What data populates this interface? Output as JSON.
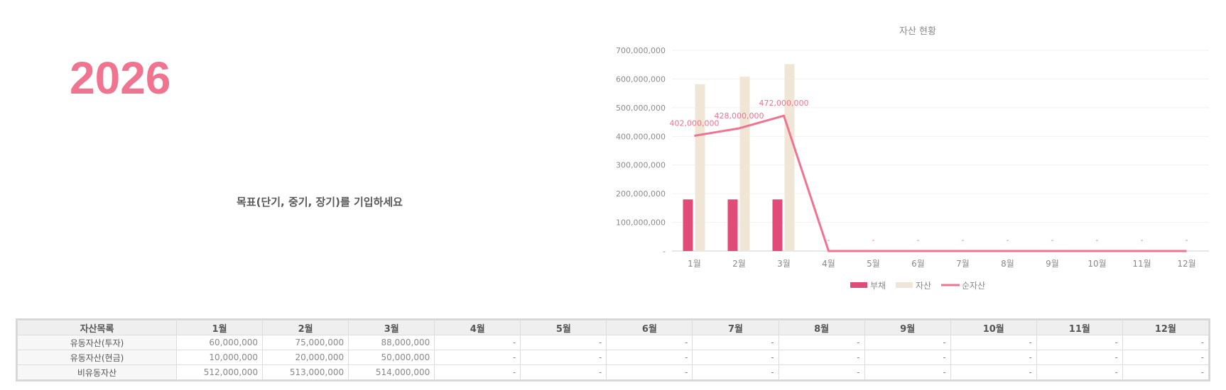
{
  "year": "2026",
  "goal_placeholder": "목표(단기, 중기, 장기)를 기입하세요",
  "colors": {
    "debt": "#e14b78",
    "asset": "#efe6d6",
    "net": "#f0738f",
    "year": "#f0738f"
  },
  "chart_data": {
    "type": "bar",
    "title": "자산 현황",
    "categories": [
      "1월",
      "2월",
      "3월",
      "4월",
      "5월",
      "6월",
      "7월",
      "8월",
      "9월",
      "10월",
      "11월",
      "12월"
    ],
    "y_ticks": [
      "-",
      "100,000,000",
      "200,000,000",
      "300,000,000",
      "400,000,000",
      "500,000,000",
      "600,000,000",
      "700,000,000"
    ],
    "ylim": [
      0,
      700000000
    ],
    "series": [
      {
        "name": "부채",
        "type": "bar",
        "values": [
          180000000,
          180000000,
          180000000,
          0,
          0,
          0,
          0,
          0,
          0,
          0,
          0,
          0
        ]
      },
      {
        "name": "자산",
        "type": "bar",
        "values": [
          582000000,
          608000000,
          652000000,
          0,
          0,
          0,
          0,
          0,
          0,
          0,
          0,
          0
        ]
      },
      {
        "name": "순자산",
        "type": "line",
        "values": [
          402000000,
          428000000,
          472000000,
          0,
          0,
          0,
          0,
          0,
          0,
          0,
          0,
          0
        ]
      }
    ],
    "data_labels": [
      "402,000,000",
      "428,000,000",
      "472,000,000",
      "-",
      "-",
      "-",
      "-",
      "-",
      "-",
      "-",
      "-",
      "-"
    ],
    "legend_position": "bottom",
    "grid": true
  },
  "table": {
    "headers": [
      "자산목록",
      "1월",
      "2월",
      "3월",
      "4월",
      "5월",
      "6월",
      "7월",
      "8월",
      "9월",
      "10월",
      "11월",
      "12월"
    ],
    "rows": [
      {
        "label": "유동자산(투자)",
        "cells": [
          "60,000,000",
          "75,000,000",
          "88,000,000",
          "-",
          "-",
          "-",
          "-",
          "-",
          "-",
          "-",
          "-",
          "-"
        ]
      },
      {
        "label": "유동자산(현금)",
        "cells": [
          "10,000,000",
          "20,000,000",
          "50,000,000",
          "-",
          "-",
          "-",
          "-",
          "-",
          "-",
          "-",
          "-",
          "-"
        ]
      },
      {
        "label": "비유동자산",
        "cells": [
          "512,000,000",
          "513,000,000",
          "514,000,000",
          "-",
          "-",
          "-",
          "-",
          "-",
          "-",
          "-",
          "-",
          "-"
        ]
      }
    ]
  }
}
